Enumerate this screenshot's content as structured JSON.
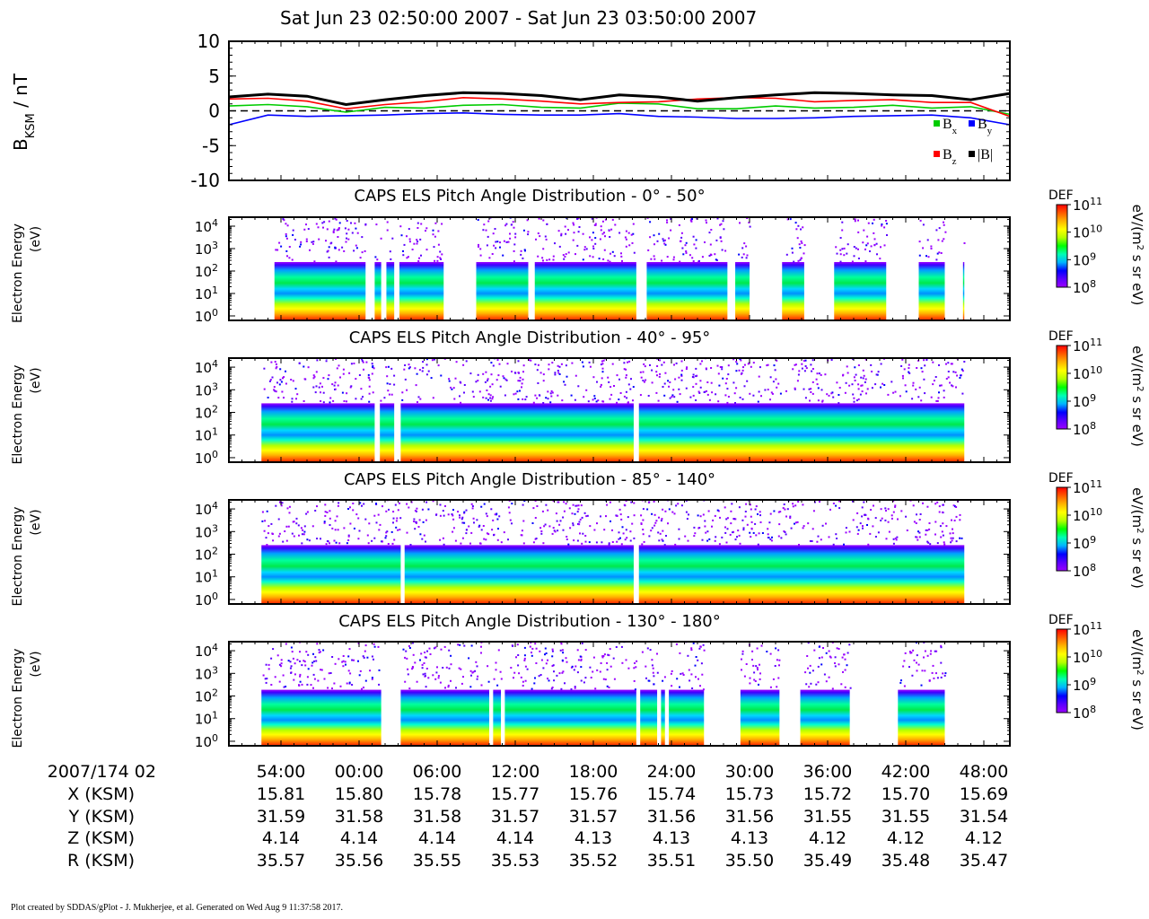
{
  "title": "Sat Jun 23 02:50:00 2007 - Sat Jun 23 03:50:00 2007",
  "footer": "Plot created by SDDAS/gPlot - J. Mukherjee, et al.  Generated on Wed Aug 9 11:37:58 2017.",
  "time_axis": {
    "start": "2007/174 02:50:00",
    "end": "2007/174 03:50:00",
    "date_label": "2007/174 02",
    "ticks": [
      "54:00",
      "00:00",
      "06:00",
      "12:00",
      "18:00",
      "24:00",
      "30:00",
      "36:00",
      "42:00",
      "48:00"
    ]
  },
  "ephemeris": {
    "rows": [
      {
        "label": "X (KSM)",
        "values": [
          "15.81",
          "15.80",
          "15.78",
          "15.77",
          "15.76",
          "15.74",
          "15.73",
          "15.72",
          "15.70",
          "15.69"
        ]
      },
      {
        "label": "Y (KSM)",
        "values": [
          "31.59",
          "31.58",
          "31.58",
          "31.57",
          "31.57",
          "31.56",
          "31.56",
          "31.55",
          "31.55",
          "31.54"
        ]
      },
      {
        "label": "Z (KSM)",
        "values": [
          "4.14",
          "4.14",
          "4.14",
          "4.14",
          "4.13",
          "4.13",
          "4.13",
          "4.12",
          "4.12",
          "4.12"
        ]
      },
      {
        "label": "R (KSM)",
        "values": [
          "35.57",
          "35.56",
          "35.55",
          "35.53",
          "35.52",
          "35.51",
          "35.50",
          "35.49",
          "35.48",
          "35.47"
        ]
      }
    ]
  },
  "colorbar": {
    "label": "DEF",
    "unit_html": "eV/(m<tspan baseline-shift='super' font-size='10'>2</tspan> s sr eV)",
    "ticks": [
      "10^8",
      "10^9",
      "10^10",
      "10^11"
    ],
    "colors": [
      "#9b00ff",
      "#5a00ff",
      "#0000ff",
      "#00b4ff",
      "#00ffb4",
      "#00ff00",
      "#b4ff00",
      "#ffff00",
      "#ffb400",
      "#ff5a00",
      "#ff0000"
    ]
  },
  "chart_data": [
    {
      "type": "line",
      "ylabel_main": "B",
      "ylabel_sub": "KSM",
      "ylabel_rest": " / nT",
      "ylim": [
        -10,
        10
      ],
      "yticks": [
        "10",
        "5",
        "0",
        "-5",
        "-10"
      ],
      "zero_line": true,
      "legend": [
        {
          "name": "B",
          "sub": "x",
          "color": "#00cc00"
        },
        {
          "name": "B",
          "sub": "y",
          "color": "#0000ff"
        },
        {
          "name": "B",
          "sub": "z",
          "color": "#ff0000"
        },
        {
          "name": "|B|",
          "sub": "",
          "color": "#000000"
        }
      ],
      "x_minutes": [
        0,
        3,
        6,
        9,
        12,
        15,
        18,
        21,
        24,
        27,
        30,
        33,
        36,
        39,
        42,
        45,
        48,
        51,
        54,
        57,
        60
      ],
      "series": [
        {
          "name": "Bx",
          "color": "#00cc00",
          "values": [
            0.7,
            0.9,
            0.6,
            -0.2,
            0.5,
            0.4,
            0.8,
            0.9,
            0.5,
            0.4,
            1.1,
            1.0,
            0.3,
            0.3,
            0.7,
            0.4,
            0.5,
            0.8,
            0.4,
            0.6,
            -0.5
          ]
        },
        {
          "name": "By",
          "color": "#0000ff",
          "values": [
            -2.0,
            -0.6,
            -0.8,
            -0.7,
            -0.6,
            -0.4,
            -0.3,
            -0.5,
            -0.6,
            -0.6,
            -0.4,
            -0.8,
            -0.9,
            -1.1,
            -1.1,
            -1.0,
            -0.8,
            -0.7,
            -0.6,
            -1.0,
            -2.0
          ]
        },
        {
          "name": "Bz",
          "color": "#ff0000",
          "values": [
            1.7,
            1.8,
            1.4,
            0.3,
            0.9,
            1.3,
            1.9,
            1.7,
            1.4,
            1.0,
            1.2,
            1.3,
            1.7,
            1.9,
            1.8,
            1.3,
            1.5,
            1.6,
            1.2,
            1.2,
            -0.8
          ]
        },
        {
          "name": "|B|",
          "color": "#000000",
          "values": [
            2.0,
            2.4,
            2.1,
            0.9,
            1.6,
            2.2,
            2.6,
            2.5,
            2.2,
            1.6,
            2.3,
            2.0,
            1.4,
            1.9,
            2.3,
            2.6,
            2.5,
            2.3,
            2.2,
            1.6,
            2.5
          ]
        }
      ]
    },
    {
      "type": "heatmap",
      "title": "CAPS ELS Pitch Angle Distribution - 0° - 50°",
      "ylabel": [
        "Electron Energy",
        "(eV)"
      ],
      "ylim_log10": [
        -0.2,
        4.4
      ],
      "yticks": [
        "10^4",
        "10^3",
        "10^2",
        "10^1",
        "10^0"
      ],
      "upper_cutoff_eV": 200,
      "coverage_minutes": [
        [
          1,
          8
        ],
        [
          8.7,
          9.2
        ],
        [
          9.6,
          10.2
        ],
        [
          10.6,
          14
        ],
        [
          16.5,
          20.5
        ],
        [
          21,
          28.8
        ],
        [
          29.6,
          35.8
        ],
        [
          36.4,
          37.5
        ],
        [
          40,
          41.7
        ],
        [
          44,
          48
        ],
        [
          50.5,
          52.5
        ],
        [
          53.9,
          54
        ]
      ]
    },
    {
      "type": "heatmap",
      "title": "CAPS ELS Pitch Angle Distribution - 40° - 95°",
      "ylabel": [
        "Electron Energy",
        "(eV)"
      ],
      "ylim_log10": [
        -0.2,
        4.4
      ],
      "yticks": [
        "10^4",
        "10^3",
        "10^2",
        "10^1",
        "10^0"
      ],
      "upper_cutoff_eV": 200,
      "coverage_minutes": [
        [
          0,
          8.7
        ],
        [
          9.1,
          10.2
        ],
        [
          10.7,
          28.6
        ],
        [
          29,
          54
        ]
      ]
    },
    {
      "type": "heatmap",
      "title": "CAPS ELS Pitch Angle Distribution - 85° - 140°",
      "ylabel": [
        "Electron Energy",
        "(eV)"
      ],
      "ylim_log10": [
        -0.2,
        4.4
      ],
      "yticks": [
        "10^4",
        "10^3",
        "10^2",
        "10^1",
        "10^0"
      ],
      "upper_cutoff_eV": 200,
      "coverage_minutes": [
        [
          0,
          10.7
        ],
        [
          11,
          28.6
        ],
        [
          29,
          54
        ]
      ]
    },
    {
      "type": "heatmap",
      "title": "CAPS ELS Pitch Angle Distribution - 130° - 180°",
      "ylabel": [
        "Electron Energy",
        "(eV)"
      ],
      "ylim_log10": [
        -0.2,
        4.4
      ],
      "yticks": [
        "10^4",
        "10^3",
        "10^2",
        "10^1",
        "10^0"
      ],
      "upper_cutoff_eV": 150,
      "coverage_minutes": [
        [
          0,
          9.2
        ],
        [
          10.7,
          17.5
        ],
        [
          17.8,
          18.4
        ],
        [
          18.7,
          28.8
        ],
        [
          29.1,
          30.4
        ],
        [
          30.7,
          31
        ],
        [
          31.3,
          34
        ],
        [
          36.8,
          39.8
        ],
        [
          41.4,
          45.2
        ],
        [
          48.9,
          52.5
        ]
      ]
    }
  ]
}
